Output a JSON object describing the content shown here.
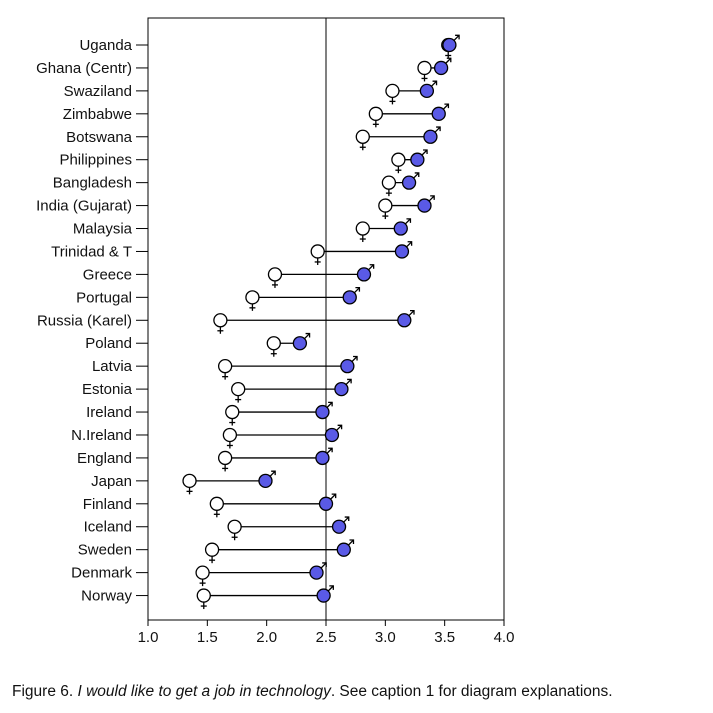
{
  "chart_data": {
    "type": "dot-range",
    "xlim": [
      1.0,
      4.0
    ],
    "xticks": [
      "1.0",
      "1.5",
      "2.0",
      "2.5",
      "3.0",
      "3.5",
      "4.0"
    ],
    "reference_line": 2.5,
    "series": [
      {
        "symbol": "♀",
        "fill": "#ffffff"
      },
      {
        "symbol": "♂",
        "fill": "#5a5ae6"
      }
    ],
    "categories": [
      "Uganda",
      "Ghana (Centr)",
      "Swaziland",
      "Zimbabwe",
      "Botswana",
      "Philippines",
      "Bangladesh",
      "India (Gujarat)",
      "Malaysia",
      "Trinidad & T",
      "Greece",
      "Portugal",
      "Russia (Karel)",
      "Poland",
      "Latvia",
      "Estonia",
      "Ireland",
      "N.Ireland",
      "England",
      "Japan",
      "Finland",
      "Iceland",
      "Sweden",
      "Denmark",
      "Norway"
    ],
    "female": [
      3.53,
      3.33,
      3.06,
      2.92,
      2.81,
      3.11,
      3.03,
      3.0,
      2.81,
      2.43,
      2.07,
      1.88,
      1.61,
      2.06,
      1.65,
      1.76,
      1.71,
      1.69,
      1.65,
      1.35,
      1.58,
      1.73,
      1.54,
      1.46,
      1.47
    ],
    "male": [
      3.54,
      3.47,
      3.35,
      3.45,
      3.38,
      3.27,
      3.2,
      3.33,
      3.13,
      3.14,
      2.82,
      2.7,
      3.16,
      2.28,
      2.68,
      2.63,
      2.47,
      2.55,
      2.47,
      1.99,
      2.5,
      2.61,
      2.65,
      2.42,
      2.48
    ]
  },
  "caption": {
    "prefix": "Figure 6. ",
    "italic": "I would like to get a job in technology",
    "suffix": ". See caption 1 for diagram explanations."
  },
  "colors": {
    "male_fill": "#5a5ae6",
    "female_fill": "#ffffff",
    "stroke": "#000000"
  }
}
